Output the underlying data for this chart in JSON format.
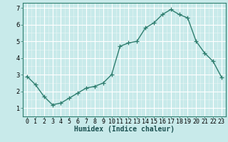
{
  "x": [
    0,
    1,
    2,
    3,
    4,
    5,
    6,
    7,
    8,
    9,
    10,
    11,
    12,
    13,
    14,
    15,
    16,
    17,
    18,
    19,
    20,
    21,
    22,
    23
  ],
  "y": [
    2.9,
    2.4,
    1.7,
    1.2,
    1.3,
    1.6,
    1.9,
    2.2,
    2.3,
    2.5,
    3.0,
    4.7,
    4.9,
    5.0,
    5.8,
    6.1,
    6.6,
    6.9,
    6.6,
    6.4,
    5.0,
    4.3,
    3.8,
    2.85
  ],
  "line_color": "#2e7d6e",
  "bg_color": "#c8eaea",
  "grid_color": "#ffffff",
  "xlabel": "Humidex (Indice chaleur)",
  "xlim": [
    -0.5,
    23.5
  ],
  "ylim": [
    0.7,
    7.3
  ],
  "yticks": [
    1,
    2,
    3,
    4,
    5,
    6,
    7
  ],
  "xtick_labels": [
    "0",
    "1",
    "2",
    "3",
    "4",
    "5",
    "6",
    "7",
    "8",
    "9",
    "10",
    "11",
    "12",
    "13",
    "14",
    "15",
    "16",
    "17",
    "18",
    "19",
    "20",
    "21",
    "22",
    "23"
  ],
  "marker": "+",
  "markersize": 4,
  "linewidth": 1.0,
  "xlabel_fontsize": 7,
  "tick_fontsize": 6
}
